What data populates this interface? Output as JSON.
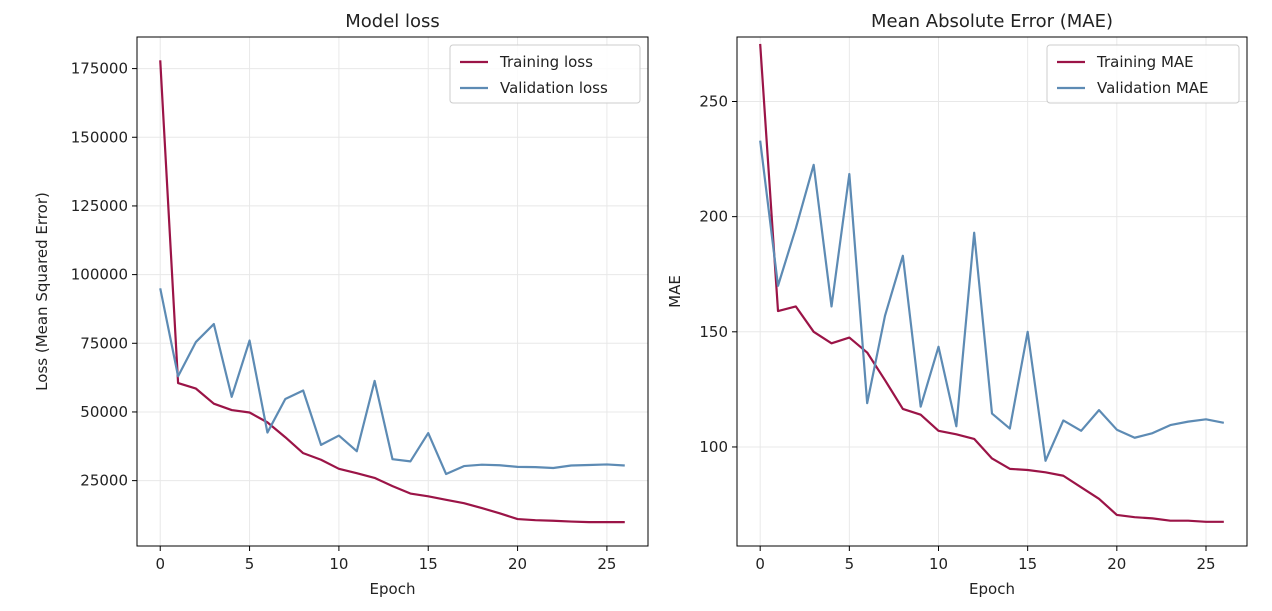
{
  "chart_data": [
    {
      "type": "line",
      "title": "Model loss",
      "xlabel": "Epoch",
      "ylabel": "Loss (Mean Squared Error)",
      "xlim": [
        -1.3,
        27.3
      ],
      "ylim": [
        1200,
        186500
      ],
      "xticks": [
        0,
        5,
        10,
        15,
        20,
        25
      ],
      "yticks": [
        25000,
        50000,
        75000,
        100000,
        125000,
        150000,
        175000
      ],
      "grid": true,
      "legend_position": "upper right",
      "x": [
        0,
        1,
        2,
        3,
        4,
        5,
        6,
        7,
        8,
        9,
        10,
        11,
        12,
        13,
        14,
        15,
        16,
        17,
        18,
        19,
        20,
        21,
        22,
        23,
        24,
        25,
        26
      ],
      "series": [
        {
          "name": "Training loss",
          "color": "#9b1447",
          "values": [
            178000,
            60500,
            58500,
            53000,
            50700,
            49800,
            46200,
            40800,
            35000,
            32600,
            29300,
            27700,
            26000,
            23000,
            20300,
            19300,
            18000,
            16800,
            15000,
            13100,
            11000,
            10600,
            10400,
            10100,
            9900,
            9900,
            9900
          ]
        },
        {
          "name": "Validation loss",
          "color": "#5d8bb4",
          "values": [
            95000,
            63000,
            75500,
            82000,
            55500,
            76000,
            42500,
            54700,
            57800,
            38000,
            41400,
            35700,
            61300,
            32800,
            32000,
            42300,
            27400,
            30300,
            30800,
            30600,
            30000,
            29900,
            29600,
            30500,
            30700,
            30900,
            30500
          ]
        }
      ]
    },
    {
      "type": "line",
      "title": "Mean Absolute Error (MAE)",
      "xlabel": "Epoch",
      "ylabel": "MAE",
      "xlim": [
        -1.3,
        27.3
      ],
      "ylim": [
        57,
        278
      ],
      "xticks": [
        0,
        5,
        10,
        15,
        20,
        25
      ],
      "yticks": [
        100,
        150,
        200,
        250
      ],
      "grid": true,
      "legend_position": "upper right",
      "x": [
        0,
        1,
        2,
        3,
        4,
        5,
        6,
        7,
        8,
        9,
        10,
        11,
        12,
        13,
        14,
        15,
        16,
        17,
        18,
        19,
        20,
        21,
        22,
        23,
        24,
        25,
        26
      ],
      "series": [
        {
          "name": "Training MAE",
          "color": "#9b1447",
          "values": [
            275,
            159,
            161,
            150,
            145,
            147.5,
            141,
            129,
            116.5,
            114,
            107,
            105.5,
            103.5,
            95,
            90.5,
            90,
            89,
            87.5,
            82.5,
            77.5,
            70.5,
            69.5,
            69,
            68,
            68,
            67.5,
            67.5
          ]
        },
        {
          "name": "Validation MAE",
          "color": "#5d8bb4",
          "values": [
            233,
            170,
            195,
            222.5,
            161,
            218.5,
            119,
            157,
            183,
            117.5,
            143.5,
            109,
            193,
            114.5,
            108,
            150,
            94,
            111.5,
            107,
            116,
            107.5,
            104,
            106,
            109.5,
            111,
            112,
            110.5
          ]
        }
      ]
    }
  ]
}
